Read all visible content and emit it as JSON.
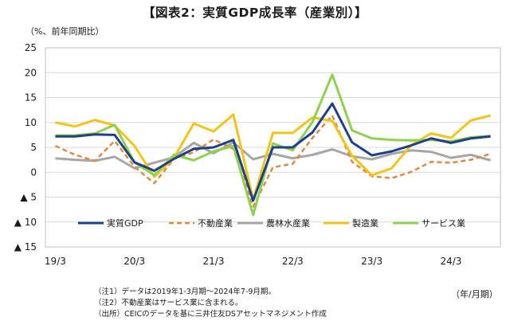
{
  "title": "【図表2：実質GDP成長率（産業別）】",
  "unit_label": "（%、前年同期比）",
  "x_unit_label": "（年/月期）",
  "notes": [
    "（注1）データは2019年1-3月期～2024年7-9月期。",
    "（注2）不動産業はサービス業に含まれる。",
    "（出所）CEICのデータを基に三井住友DSアセットマネジメント作成"
  ],
  "chart_data": {
    "type": "line",
    "x": [
      "19/3",
      "19/6",
      "19/9",
      "19/12",
      "20/3",
      "20/6",
      "20/9",
      "20/12",
      "21/3",
      "21/6",
      "21/9",
      "21/12",
      "22/3",
      "22/6",
      "22/9",
      "22/12",
      "23/3",
      "23/6",
      "23/9",
      "23/12",
      "24/3",
      "24/6",
      "24/9"
    ],
    "x_tick_labels": [
      "19/3",
      "20/3",
      "21/3",
      "22/3",
      "23/3",
      "24/3"
    ],
    "y_tick_labels": [
      "25",
      "20",
      "15",
      "10",
      "5",
      "0",
      "▲ 5",
      "▲ 10",
      "▲ 15"
    ],
    "ylim": [
      -15,
      25
    ],
    "y_ticks": [
      25,
      20,
      15,
      10,
      5,
      0,
      -5,
      -10,
      -15
    ],
    "grid": true,
    "legend_position": "bottom",
    "series": [
      {
        "name": "実質GDP",
        "color": "#1f3e8c",
        "dash": "solid",
        "values": [
          7.2,
          7.2,
          7.6,
          7.5,
          2.0,
          0.3,
          2.7,
          4.7,
          5.0,
          6.5,
          -5.7,
          5.0,
          5.0,
          8.0,
          13.8,
          6.0,
          3.4,
          4.2,
          5.4,
          6.8,
          5.9,
          6.8,
          7.2
        ]
      },
      {
        "name": "不動産業",
        "color": "#d98b46",
        "dash": "dashed",
        "values": [
          5.3,
          3.5,
          2.3,
          6.3,
          1.1,
          -2.2,
          2.7,
          4.0,
          6.6,
          4.7,
          -6.9,
          1.0,
          1.7,
          6.9,
          11.4,
          2.1,
          -0.8,
          -1.2,
          0.1,
          2.1,
          1.9,
          2.5,
          3.7
        ]
      },
      {
        "name": "農林水産業",
        "color": "#a6a6a6",
        "dash": "solid",
        "values": [
          2.8,
          2.5,
          2.3,
          3.1,
          0.8,
          1.9,
          3.0,
          5.9,
          3.8,
          6.0,
          2.6,
          3.7,
          2.8,
          3.5,
          4.6,
          3.2,
          2.6,
          3.7,
          4.4,
          4.1,
          2.9,
          3.5,
          2.4
        ]
      },
      {
        "name": "製造業",
        "color": "#f2c418",
        "dash": "solid",
        "values": [
          10.0,
          9.2,
          10.5,
          9.4,
          5.3,
          -0.9,
          2.9,
          9.8,
          8.2,
          11.6,
          -5.5,
          7.9,
          7.9,
          11.0,
          10.3,
          3.3,
          -0.6,
          0.8,
          5.5,
          7.8,
          6.9,
          10.4,
          11.4
        ]
      },
      {
        "name": "サービス業",
        "color": "#8fd14f",
        "dash": "solid",
        "values": [
          7.4,
          7.4,
          7.8,
          9.5,
          2.0,
          -0.6,
          3.5,
          2.4,
          4.2,
          5.3,
          -8.6,
          5.8,
          4.4,
          10.1,
          19.6,
          8.4,
          6.8,
          6.5,
          6.4,
          6.5,
          6.2,
          7.0,
          7.3
        ]
      }
    ]
  }
}
